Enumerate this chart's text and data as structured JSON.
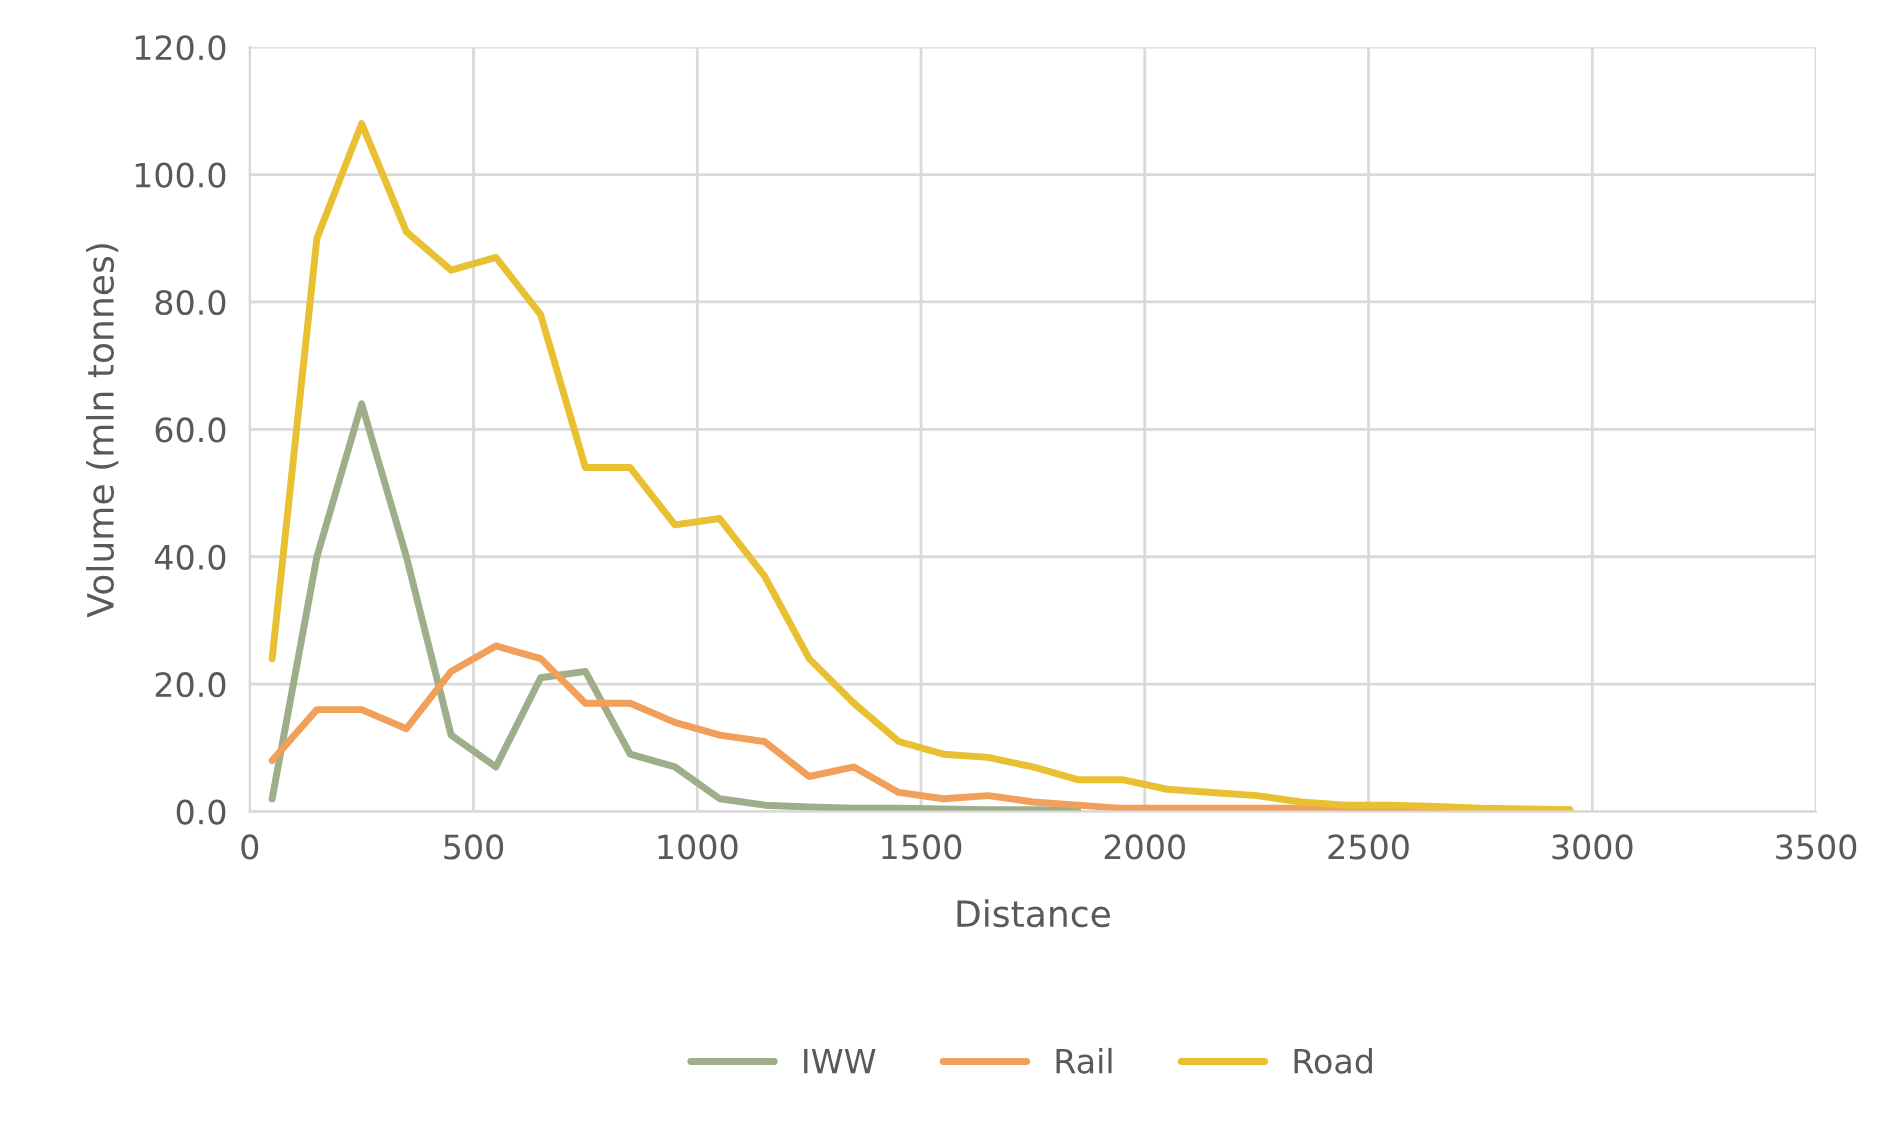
{
  "chart_data": {
    "type": "line",
    "xlabel": "Distance",
    "ylabel": "Volume (mln tonnes)",
    "x": [
      50,
      150,
      250,
      350,
      450,
      550,
      650,
      750,
      850,
      950,
      1050,
      1150,
      1250,
      1350,
      1450,
      1550,
      1650,
      1750,
      1850,
      1950,
      2050,
      2150,
      2250,
      2350,
      2450,
      2550,
      2650,
      2750,
      2850,
      2950
    ],
    "series": [
      {
        "name": "IWW",
        "color": "#9fae8a",
        "values": [
          2,
          40,
          64,
          40,
          12,
          7,
          21,
          22,
          9,
          7,
          2,
          1,
          0.7,
          0.5,
          0.5,
          0.4,
          0.3,
          0.3,
          0.2,
          null,
          null,
          null,
          null,
          null,
          null,
          null,
          null,
          null,
          null,
          null
        ]
      },
      {
        "name": "Rail",
        "color": "#f0a05a",
        "values": [
          8,
          16,
          16,
          13,
          22,
          26,
          24,
          17,
          17,
          14,
          12,
          11,
          5.5,
          7,
          3,
          2,
          2.5,
          1.5,
          1,
          0.5,
          0.5,
          0.5,
          0.5,
          0.5,
          0.4,
          0.4,
          0.3,
          0.3,
          0.2,
          0.2
        ]
      },
      {
        "name": "Road",
        "color": "#e8c032",
        "values": [
          24,
          90,
          108,
          91,
          85,
          87,
          78,
          54,
          54,
          45,
          46,
          37,
          24,
          17,
          11,
          9,
          8.5,
          7,
          5,
          5,
          3.5,
          3,
          2.5,
          1.5,
          1,
          1,
          0.8,
          0.5,
          0.4,
          0.3
        ]
      }
    ],
    "xlim": [
      0,
      3500
    ],
    "xticks": [
      0,
      500,
      1000,
      1500,
      2000,
      2500,
      3000,
      3500
    ],
    "ylim": [
      0,
      120
    ],
    "yticks": [
      {
        "value": 0,
        "label": "0.0"
      },
      {
        "value": 20,
        "label": "20.0"
      },
      {
        "value": 40,
        "label": "40.0"
      },
      {
        "value": 60,
        "label": "60.0"
      },
      {
        "value": 80,
        "label": "80.0"
      },
      {
        "value": 100,
        "label": "100.0"
      },
      {
        "value": 120,
        "label": "120.0"
      }
    ],
    "grid": true,
    "legend": "bottom",
    "marker": "none",
    "line_style": "solid"
  }
}
